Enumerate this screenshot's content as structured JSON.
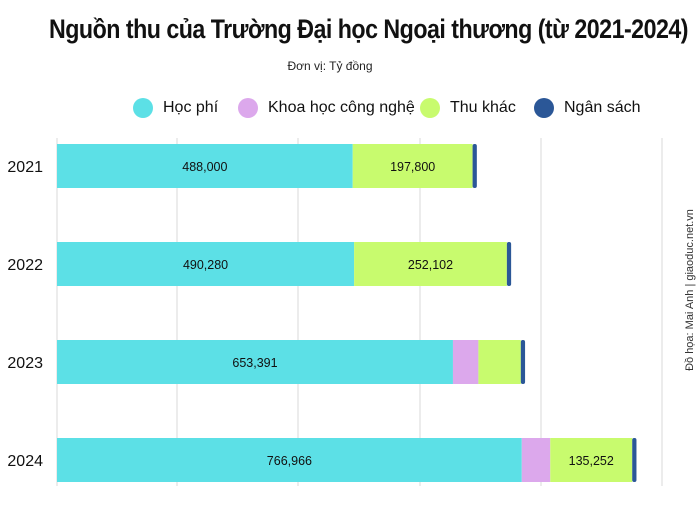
{
  "title": "Nguồn thu của Trường Đại học Ngoại thương (từ 2021-2024)",
  "subtitle": "Đơn vị: Tỷ đồng",
  "credit": "Đồ họa: Mai Anh | giaoduc.net.vn",
  "colors": {
    "hoc_phi": "#5ce0e6",
    "khcn": "#dca8ec",
    "thu_khac": "#c8fb6e",
    "ngan_sach": "#2b5797",
    "grid": "#d9d9d9"
  },
  "chart_data": {
    "type": "bar",
    "orientation": "horizontal",
    "stacked": true,
    "categories": [
      "2021",
      "2022",
      "2023",
      "2024"
    ],
    "xlim": [
      0,
      1000000
    ],
    "grid": true,
    "legend_position": "top",
    "series": [
      {
        "name": "Học phí",
        "color_key": "hoc_phi",
        "values": [
          488000,
          490280,
          653391,
          766966
        ],
        "labels": [
          "488,000",
          "490,280",
          "653,391",
          "766,966"
        ]
      },
      {
        "name": "Khoa học công nghệ",
        "color_key": "khcn",
        "values": [
          0,
          0,
          42000,
          47000
        ],
        "labels": [
          "",
          "",
          "",
          ""
        ]
      },
      {
        "name": "Thu khác",
        "color_key": "thu_khac",
        "values": [
          197800,
          252102,
          70000,
          135252
        ],
        "labels": [
          "197,800",
          "252,102",
          "",
          "135,252"
        ]
      },
      {
        "name": "Ngân sách",
        "color_key": "ngan_sach",
        "values": [
          7000,
          7000,
          7000,
          7000
        ],
        "labels": [
          "",
          "",
          "",
          ""
        ]
      }
    ]
  }
}
